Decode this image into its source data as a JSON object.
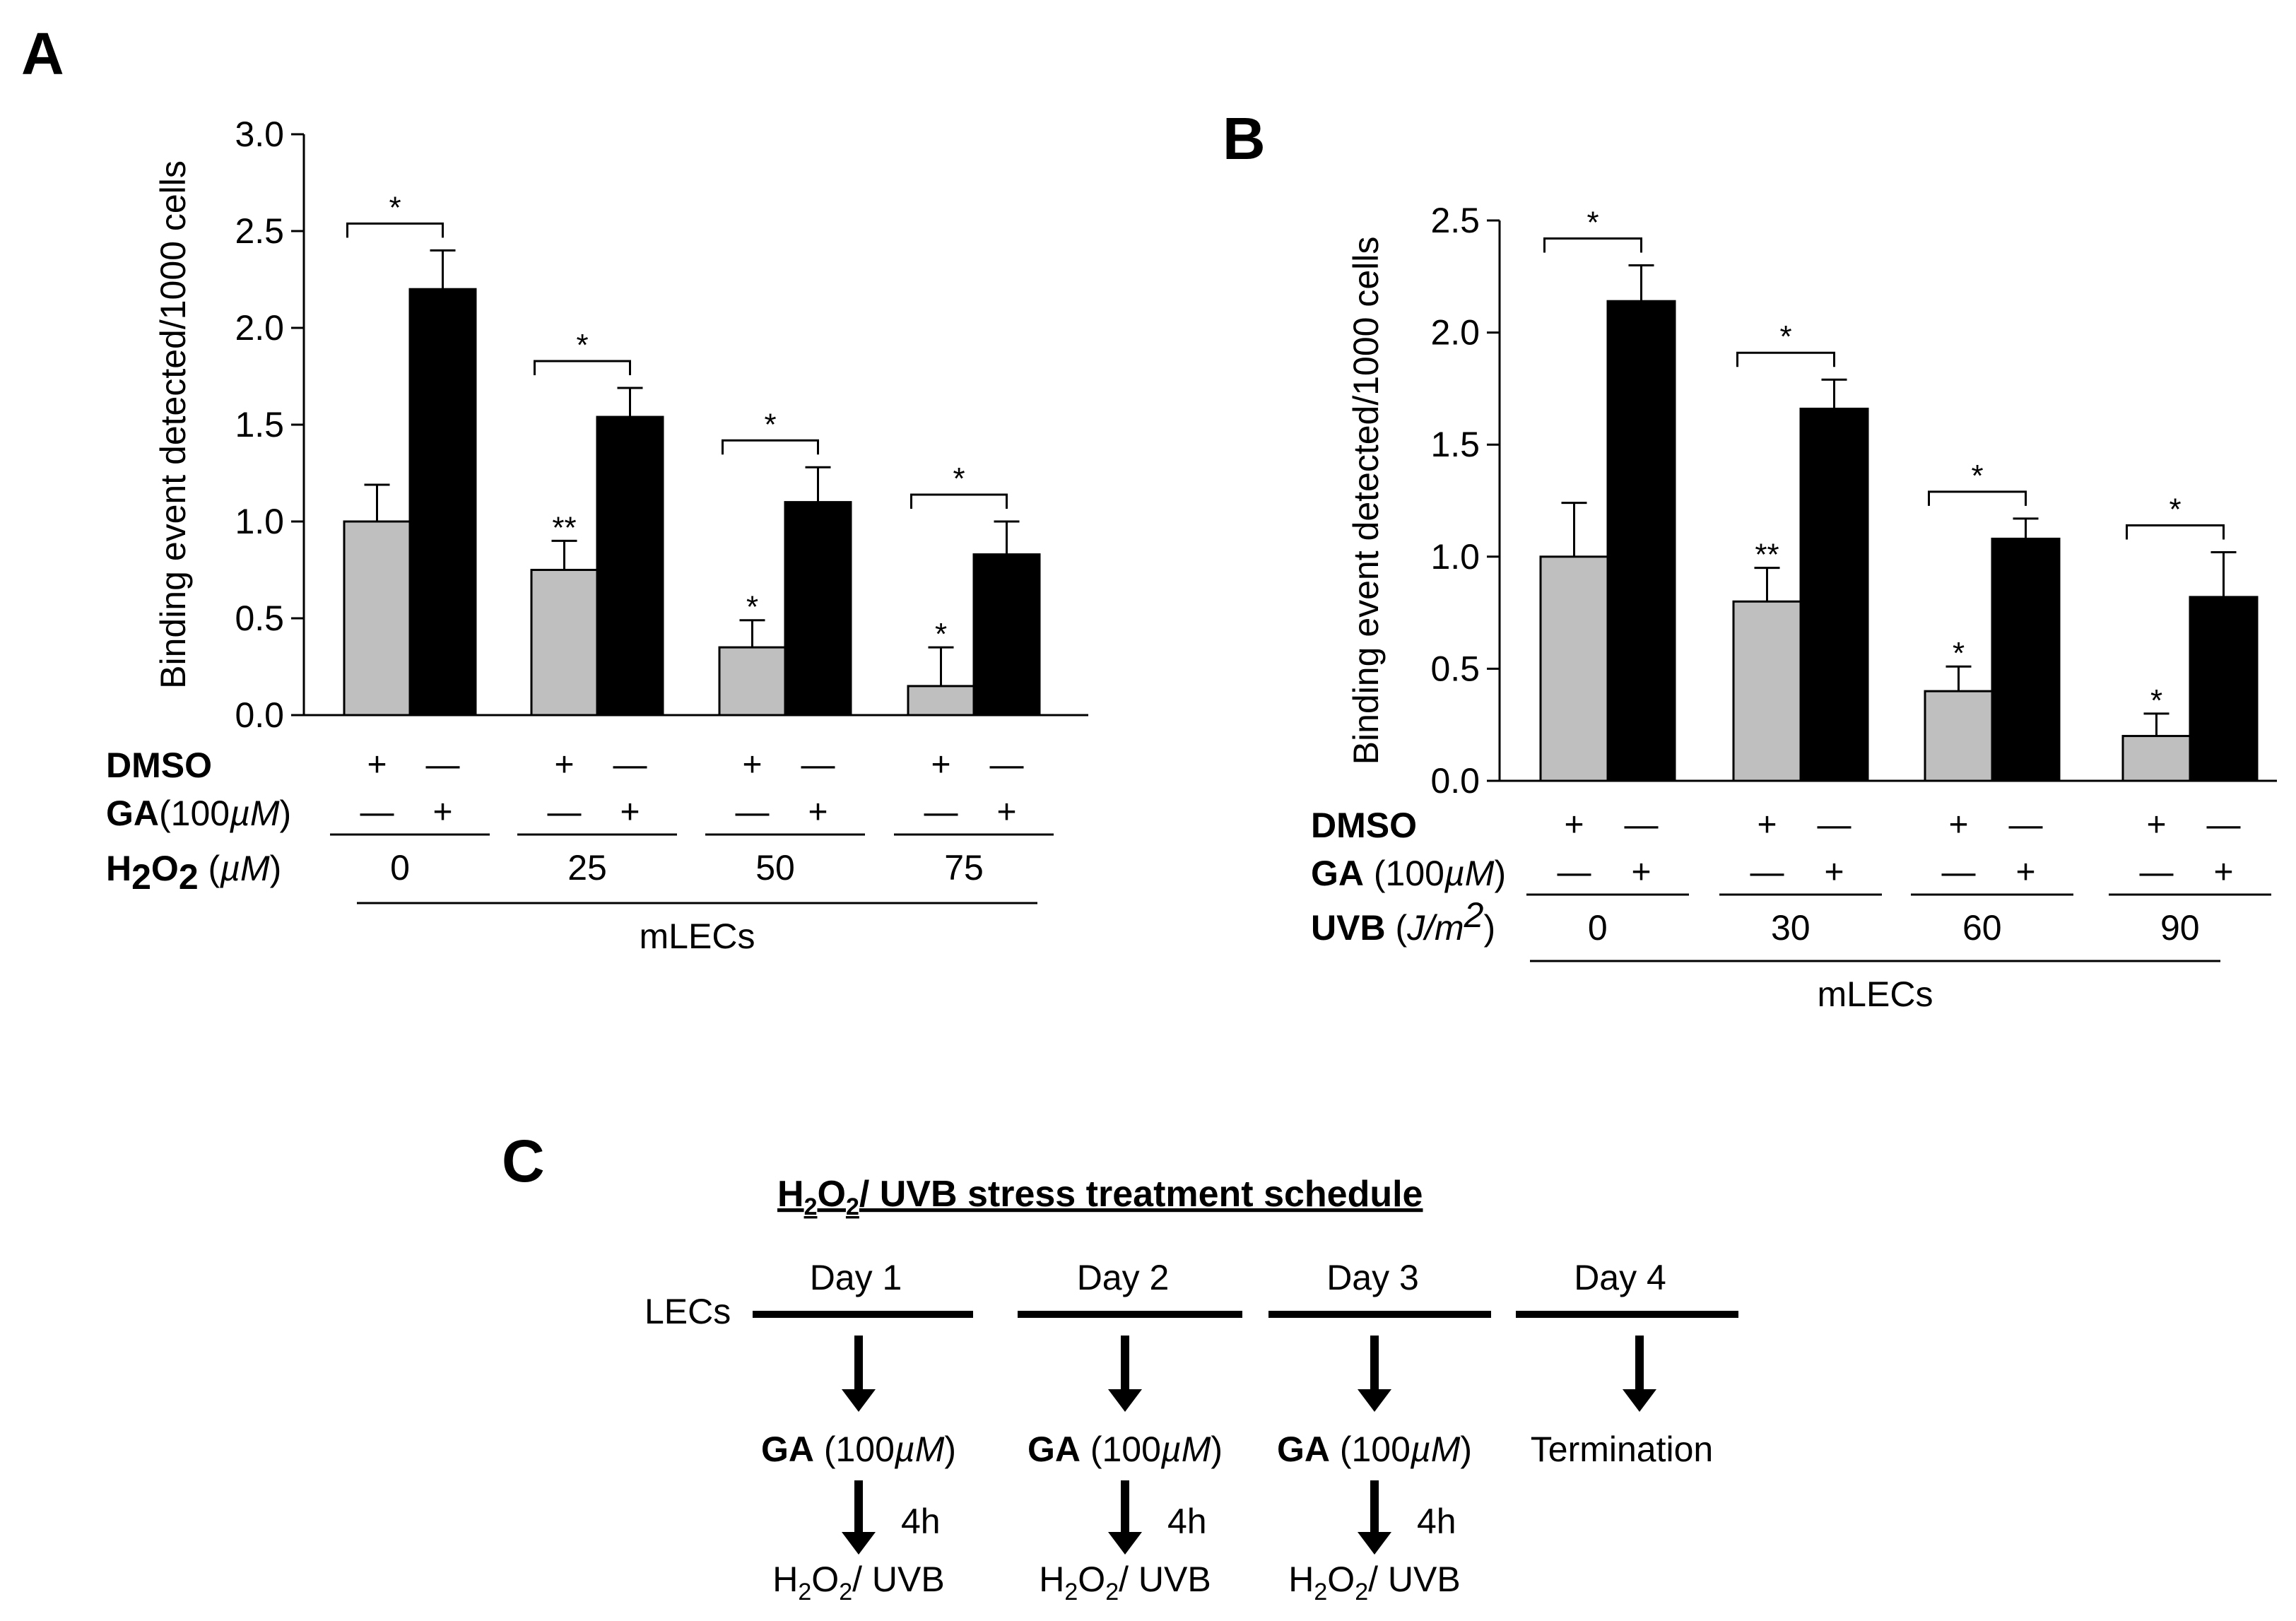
{
  "panels": {
    "a": {
      "letter": "A"
    },
    "b": {
      "letter": "B"
    },
    "c": {
      "letter": "C"
    }
  },
  "chart_data": [
    {
      "type": "bar",
      "panel": "A",
      "ylabel": "Binding event  detected/1000 cells",
      "ylim": [
        0,
        3
      ],
      "yticks": [
        "0.0",
        "0.5",
        "1.0",
        "1.5",
        "2.0",
        "2.5",
        "3.0"
      ],
      "series": [
        {
          "name": "DMSO",
          "color": "#bfbfbf",
          "values": [
            1.0,
            0.75,
            0.35,
            0.15
          ],
          "errors": [
            0.19,
            0.15,
            0.14,
            0.2
          ]
        },
        {
          "name": "GA(100µM)",
          "color": "#000000",
          "values": [
            2.2,
            1.54,
            1.1,
            0.83
          ],
          "errors": [
            0.2,
            0.15,
            0.18,
            0.17
          ]
        }
      ],
      "significance": [
        {
          "gray": "",
          "pair": "*"
        },
        {
          "gray": "**",
          "pair": "*"
        },
        {
          "gray": "*",
          "pair": "*"
        },
        {
          "gray": "*",
          "pair": "*"
        }
      ],
      "rows": {
        "dmso_label": "DMSO",
        "ga_label": "GA",
        "ga_paren": "(100",
        "ga_unit": "µM",
        "ga_close": ")",
        "dose_label_main": "H",
        "dose_label_sub": "2",
        "dose_label_main2": "O",
        "dose_label_sub2": "2",
        "dose_unit_open": " (",
        "dose_unit": "µM",
        "dose_unit_close": ")",
        "dmso_signs": [
          [
            "+",
            "—"
          ],
          [
            "+",
            "—"
          ],
          [
            "+",
            "—"
          ],
          [
            "+",
            "—"
          ]
        ],
        "ga_signs": [
          [
            "—",
            "+"
          ],
          [
            "—",
            "+"
          ],
          [
            "—",
            "+"
          ],
          [
            "—",
            "+"
          ]
        ],
        "doses": [
          "0",
          "25",
          "50",
          "75"
        ],
        "group": "mLECs"
      }
    },
    {
      "type": "bar",
      "panel": "B",
      "ylabel": "Binding event  detected/1000 cells",
      "ylim": [
        0,
        2.5
      ],
      "yticks": [
        "0.0",
        "0.5",
        "1.0",
        "1.5",
        "2.0",
        "2.5"
      ],
      "series": [
        {
          "name": "DMSO",
          "color": "#bfbfbf",
          "values": [
            1.0,
            0.8,
            0.4,
            0.2
          ],
          "errors": [
            0.24,
            0.15,
            0.11,
            0.1
          ]
        },
        {
          "name": "GA (100µM)",
          "color": "#000000",
          "values": [
            2.14,
            1.66,
            1.08,
            0.82
          ],
          "errors": [
            0.16,
            0.13,
            0.09,
            0.2
          ]
        }
      ],
      "significance": [
        {
          "gray": "",
          "pair": "*"
        },
        {
          "gray": "**",
          "pair": "*"
        },
        {
          "gray": "*",
          "pair": "*"
        },
        {
          "gray": "*",
          "pair": "*"
        }
      ],
      "rows": {
        "dmso_label": "DMSO",
        "ga_label": "GA",
        "ga_paren": " (100",
        "ga_unit": "µM",
        "ga_close": ")",
        "dose_label_main": "UVB",
        "dose_unit_open": " (",
        "dose_unit": "J/m",
        "dose_unit_sup": "2",
        "dose_unit_close": ")",
        "dmso_signs": [
          [
            "+",
            "—"
          ],
          [
            "+",
            "—"
          ],
          [
            "+",
            "—"
          ],
          [
            "+",
            "—"
          ]
        ],
        "ga_signs": [
          [
            "—",
            "+"
          ],
          [
            "—",
            "+"
          ],
          [
            "—",
            "+"
          ],
          [
            "—",
            "+"
          ]
        ],
        "doses": [
          "0",
          "30",
          "60",
          "90"
        ],
        "group": "mLECs"
      }
    }
  ],
  "schedule": {
    "title_h": "H",
    "title_sub1": "2",
    "title_o": "O",
    "title_sub2": "2",
    "title_rest": "/ UVB stress treatment schedule",
    "lecs": "LECs",
    "days": [
      "Day 1",
      "Day 2",
      "Day 3",
      "Day 4"
    ],
    "ga_bold": "GA",
    "ga_rest": " (100",
    "ga_unit": "µM",
    "ga_close": ")",
    "termination": "Termination",
    "interval": "4h",
    "stress_h": "H",
    "stress_sub1": "2",
    "stress_o": "O",
    "stress_sub2": "2",
    "stress_rest": "/ UVB"
  }
}
